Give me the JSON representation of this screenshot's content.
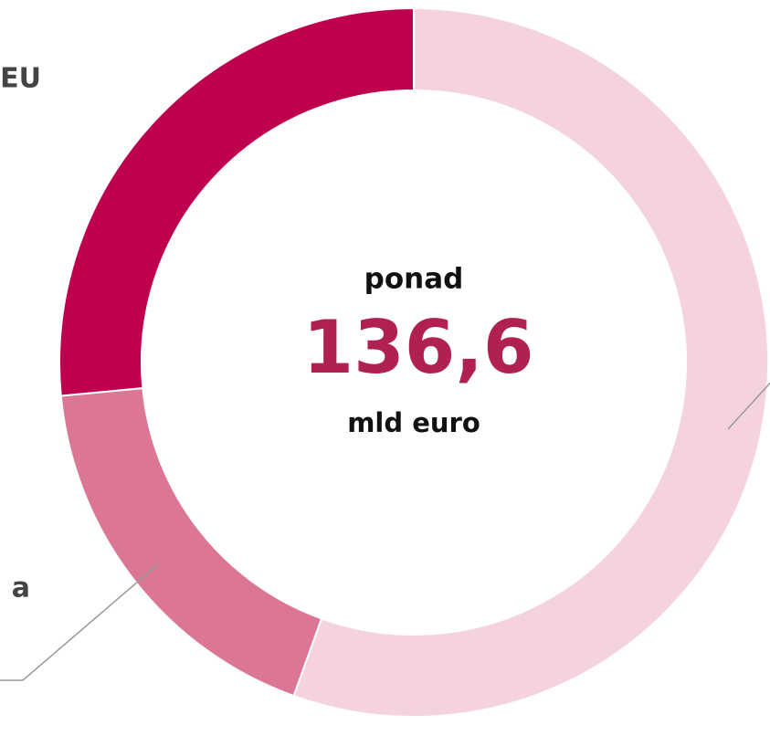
{
  "chart_data": {
    "type": "donut",
    "categories": [
      null,
      "a",
      "EU"
    ],
    "values": [
      55.5,
      18,
      26.5
    ],
    "colors": [
      "#f5d3de",
      "#db7795",
      "#bf004f"
    ],
    "center_text": {
      "top": "ponad",
      "value": "136,6",
      "bottom": "mld euro"
    },
    "center_value_color": "#b0214f"
  }
}
